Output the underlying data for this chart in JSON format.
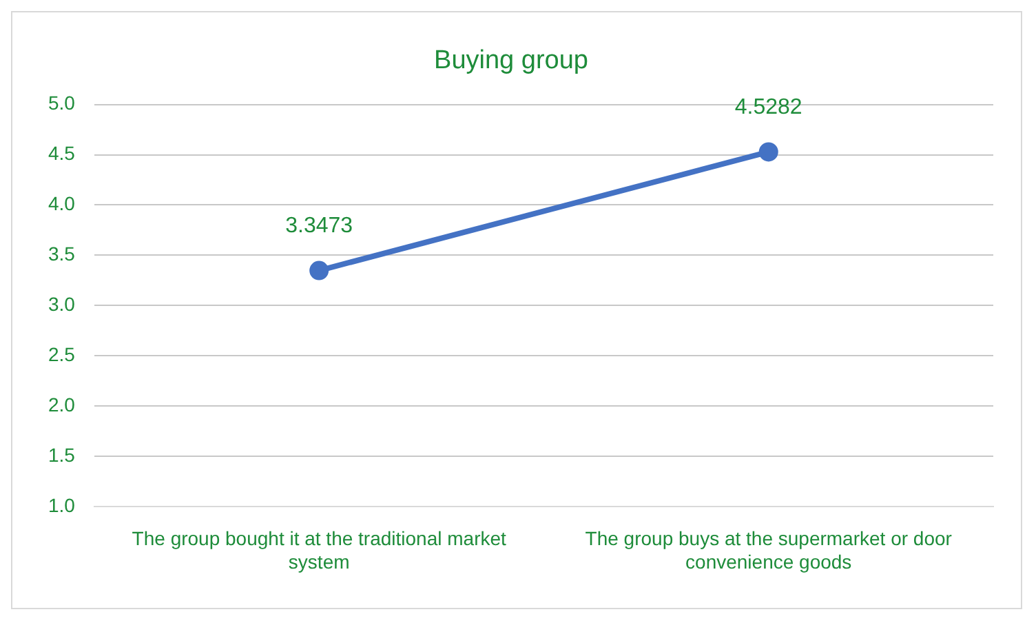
{
  "chart_data": {
    "type": "line",
    "title": "Buying group",
    "categories": [
      "The group bought it at the traditional market system",
      "The group buys at the supermarket or door convenience goods"
    ],
    "series": [
      {
        "color": "#4472c4",
        "values": [
          3.3473,
          4.5282
        ]
      }
    ],
    "ylim": [
      1.0,
      5.0
    ],
    "yticks": [
      {
        "value": 1,
        "label": "1.0"
      },
      {
        "value": 1.5,
        "label": "1.5"
      },
      {
        "value": 2,
        "label": "2.0"
      },
      {
        "value": 2.5,
        "label": "2.5"
      },
      {
        "value": 3,
        "label": "3.0"
      },
      {
        "value": 3.5,
        "label": "3.5"
      },
      {
        "value": 4,
        "label": "4.0"
      },
      {
        "value": 4.5,
        "label": "4.5"
      },
      {
        "value": 5,
        "label": "5.0"
      }
    ],
    "grid": "y",
    "marker": "circle",
    "line_style": "solid",
    "data_labels": true,
    "legend": false
  }
}
